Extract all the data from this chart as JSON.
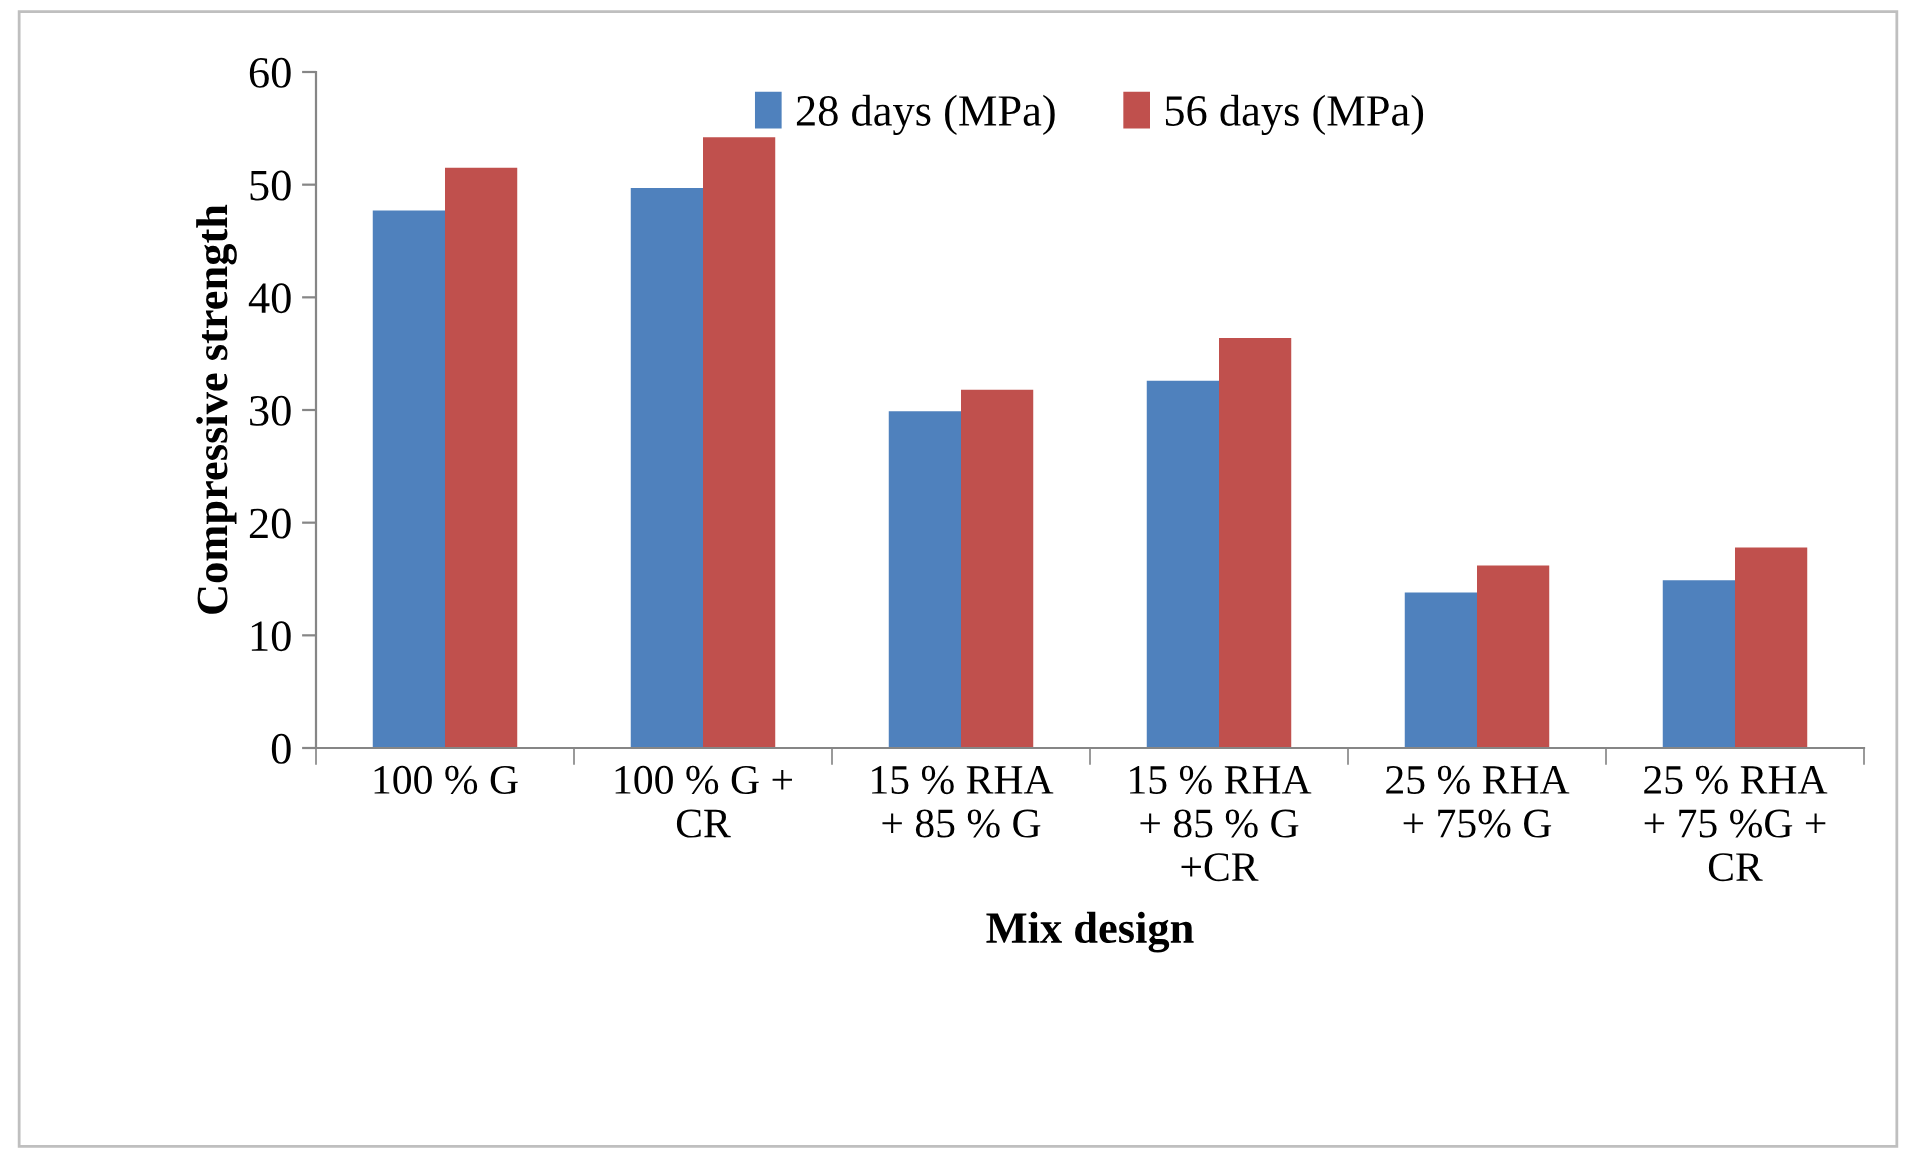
{
  "chart_data": {
    "type": "bar",
    "xlabel": "Mix design",
    "ylabel": "Compressive strength",
    "categories": [
      "100 % G",
      "100 % G +\nCR",
      "15 % RHA\n+ 85 % G",
      "15 % RHA\n+ 85 % G\n+CR",
      "25 % RHA\n+ 75% G",
      "25 % RHA\n+ 75 %G +\nCR"
    ],
    "series": [
      {
        "name": "28 days (MPa)",
        "color": "#4f81bd",
        "values": [
          47.7,
          49.7,
          29.9,
          32.6,
          13.8,
          14.9
        ]
      },
      {
        "name": "56 days (MPa)",
        "color": "#c0504d",
        "values": [
          51.5,
          54.2,
          31.8,
          36.4,
          16.2,
          17.8
        ]
      }
    ],
    "ylim": [
      0,
      60
    ],
    "yticks": [
      0,
      10,
      20,
      30,
      40,
      50,
      60
    ],
    "grid": false,
    "legend": "top"
  }
}
